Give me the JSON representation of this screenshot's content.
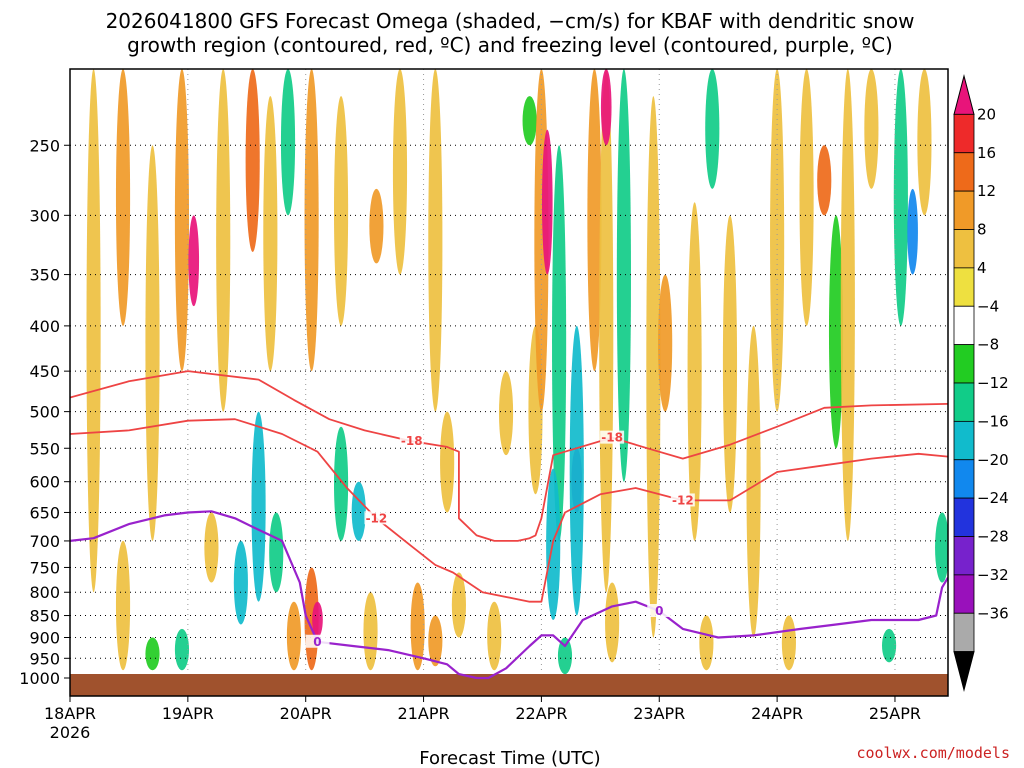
{
  "chart_data": {
    "type": "heatmap",
    "title_lines": [
      "2026041800 GFS Forecast Omega (shaded, −cm/s) for KBAF with dendritic snow",
      "growth region (contoured, red, ºC) and freezing level (contoured, purple, ºC)"
    ],
    "xlabel": "Forecast Time (UTC)",
    "ylabel": "",
    "x_ticks": [
      "18APR",
      "19APR",
      "20APR",
      "21APR",
      "22APR",
      "23APR",
      "24APR",
      "25APR"
    ],
    "x_year": "2026",
    "x_range_days": [
      0,
      7.45
    ],
    "y_ticks": [
      "250",
      "300",
      "350",
      "400",
      "450",
      "500",
      "550",
      "600",
      "650",
      "700",
      "750",
      "800",
      "850",
      "900",
      "950",
      "1000"
    ],
    "y_range_hpa": [
      1000,
      205
    ],
    "y_log": true,
    "grid": true,
    "colorbar": {
      "labels": [
        "20",
        "16",
        "12",
        "8",
        "4",
        "−4",
        "−8",
        "−12",
        "−16",
        "−20",
        "−24",
        "−28",
        "−32",
        "−36"
      ],
      "bands": [
        {
          "label": "> 20",
          "color": "#e8147a"
        },
        {
          "label": "16 to 20",
          "color": "#ee2a2a"
        },
        {
          "label": "12 to 16",
          "color": "#ee6a1a"
        },
        {
          "label": "8 to 12",
          "color": "#f09a28"
        },
        {
          "label": "4 to 8",
          "color": "#eec040"
        },
        {
          "label": "0 to 4",
          "color": "#eee040"
        },
        {
          "label": "-4 to 4",
          "color": "#ffffff"
        },
        {
          "label": "-8 to -4",
          "color": "#22cc22"
        },
        {
          "label": "-12 to -8",
          "color": "#11cc88"
        },
        {
          "label": "-16 to -12",
          "color": "#11bbcc"
        },
        {
          "label": "-20 to -16",
          "color": "#1188ee"
        },
        {
          "label": "-24 to -20",
          "color": "#2233dd"
        },
        {
          "label": "-28 to -24",
          "color": "#7722cc"
        },
        {
          "label": "-32 to -28",
          "color": "#9911bb"
        },
        {
          "label": "-36 to -32",
          "color": "#aaaaaa"
        },
        {
          "label": "< -36",
          "color": "#000000"
        }
      ]
    },
    "contours": [
      {
        "name": "-18",
        "color": "#ee4444",
        "label": "-18",
        "points": [
          [
            0,
            482
          ],
          [
            0.5,
            462
          ],
          [
            1.0,
            450
          ],
          [
            1.6,
            460
          ],
          [
            1.9,
            485
          ],
          [
            2.2,
            510
          ],
          [
            2.5,
            525
          ],
          [
            2.9,
            540
          ],
          [
            3.2,
            548
          ],
          [
            3.3,
            555
          ],
          [
            3.3,
            660
          ],
          [
            3.45,
            690
          ],
          [
            3.6,
            700
          ],
          [
            3.8,
            700
          ],
          [
            3.9,
            695
          ],
          [
            3.95,
            690
          ],
          [
            4.0,
            660
          ],
          [
            4.1,
            560
          ],
          [
            4.6,
            535
          ],
          [
            4.9,
            550
          ],
          [
            5.2,
            565
          ],
          [
            5.6,
            545
          ],
          [
            6.0,
            520
          ],
          [
            6.4,
            495
          ],
          [
            6.8,
            492
          ],
          [
            7.45,
            490
          ]
        ]
      },
      {
        "name": "-12",
        "color": "#ee4444",
        "label": "-12",
        "points": [
          [
            0,
            530
          ],
          [
            0.5,
            525
          ],
          [
            1.0,
            512
          ],
          [
            1.4,
            510
          ],
          [
            1.8,
            530
          ],
          [
            2.1,
            555
          ],
          [
            2.35,
            610
          ],
          [
            2.6,
            660
          ],
          [
            2.9,
            710
          ],
          [
            3.1,
            745
          ],
          [
            3.25,
            760
          ],
          [
            3.5,
            800
          ],
          [
            3.9,
            820
          ],
          [
            4.0,
            820
          ],
          [
            4.1,
            700
          ],
          [
            4.2,
            650
          ],
          [
            4.5,
            620
          ],
          [
            4.8,
            610
          ],
          [
            5.2,
            630
          ],
          [
            5.6,
            630
          ],
          [
            6.0,
            585
          ],
          [
            6.4,
            575
          ],
          [
            6.8,
            565
          ],
          [
            7.2,
            558
          ],
          [
            7.45,
            562
          ]
        ]
      },
      {
        "name": "0",
        "color": "#9922cc",
        "label": "0",
        "points": [
          [
            0,
            700
          ],
          [
            0.2,
            695
          ],
          [
            0.5,
            670
          ],
          [
            0.8,
            655
          ],
          [
            1.0,
            650
          ],
          [
            1.2,
            648
          ],
          [
            1.4,
            660
          ],
          [
            1.6,
            680
          ],
          [
            1.8,
            700
          ],
          [
            1.95,
            780
          ],
          [
            2.0,
            850
          ],
          [
            2.1,
            910
          ],
          [
            2.4,
            920
          ],
          [
            2.7,
            930
          ],
          [
            3.0,
            950
          ],
          [
            3.2,
            965
          ],
          [
            3.3,
            990
          ],
          [
            3.45,
            1000
          ],
          [
            3.55,
            1000
          ],
          [
            3.7,
            975
          ],
          [
            3.9,
            920
          ],
          [
            4.0,
            895
          ],
          [
            4.1,
            895
          ],
          [
            4.2,
            920
          ],
          [
            4.35,
            860
          ],
          [
            4.6,
            830
          ],
          [
            4.8,
            820
          ],
          [
            5.0,
            840
          ],
          [
            5.2,
            880
          ],
          [
            5.5,
            900
          ],
          [
            5.8,
            895
          ],
          [
            6.2,
            880
          ],
          [
            6.5,
            870
          ],
          [
            6.8,
            860
          ],
          [
            7.2,
            860
          ],
          [
            7.35,
            850
          ],
          [
            7.4,
            790
          ],
          [
            7.45,
            770
          ]
        ]
      }
    ],
    "shading_note": "omega field approximated with representative patches",
    "patches": [
      {
        "day": 0.2,
        "p1": 205,
        "p2": 800,
        "value": 6
      },
      {
        "day": 0.45,
        "p1": 205,
        "p2": 400,
        "value": 10
      },
      {
        "day": 0.7,
        "p1": 250,
        "p2": 700,
        "value": 6
      },
      {
        "day": 0.95,
        "p1": 205,
        "p2": 450,
        "value": 10
      },
      {
        "day": 1.05,
        "p1": 300,
        "p2": 380,
        "value": 22
      },
      {
        "day": 1.3,
        "p1": 205,
        "p2": 500,
        "value": 8
      },
      {
        "day": 1.55,
        "p1": 205,
        "p2": 330,
        "value": 14
      },
      {
        "day": 1.7,
        "p1": 220,
        "p2": 450,
        "value": 6
      },
      {
        "day": 1.85,
        "p1": 205,
        "p2": 300,
        "value": -10
      },
      {
        "day": 2.05,
        "p1": 205,
        "p2": 450,
        "value": 10
      },
      {
        "day": 2.3,
        "p1": 220,
        "p2": 400,
        "value": 6
      },
      {
        "day": 2.6,
        "p1": 280,
        "p2": 340,
        "value": 12
      },
      {
        "day": 2.8,
        "p1": 205,
        "p2": 350,
        "value": 6
      },
      {
        "day": 3.1,
        "p1": 205,
        "p2": 500,
        "value": 6
      },
      {
        "day": 0.95,
        "p1": 880,
        "p2": 980,
        "value": -10
      },
      {
        "day": 0.7,
        "p1": 900,
        "p2": 980,
        "value": -6
      },
      {
        "day": 1.2,
        "p1": 650,
        "p2": 780,
        "value": 6
      },
      {
        "day": 1.45,
        "p1": 700,
        "p2": 870,
        "value": -12
      },
      {
        "day": 1.6,
        "p1": 500,
        "p2": 820,
        "value": -14
      },
      {
        "day": 1.75,
        "p1": 650,
        "p2": 800,
        "value": -10
      },
      {
        "day": 1.9,
        "p1": 820,
        "p2": 980,
        "value": 10
      },
      {
        "day": 2.05,
        "p1": 750,
        "p2": 980,
        "value": 14
      },
      {
        "day": 2.1,
        "p1": 820,
        "p2": 900,
        "value": 22
      },
      {
        "day": 2.3,
        "p1": 520,
        "p2": 700,
        "value": -8
      },
      {
        "day": 2.45,
        "p1": 600,
        "p2": 700,
        "value": -12
      },
      {
        "day": 2.55,
        "p1": 800,
        "p2": 980,
        "value": 6
      },
      {
        "day": 2.95,
        "p1": 780,
        "p2": 980,
        "value": 10
      },
      {
        "day": 3.1,
        "p1": 850,
        "p2": 970,
        "value": 12
      },
      {
        "day": 3.3,
        "p1": 760,
        "p2": 900,
        "value": 6
      },
      {
        "day": 3.6,
        "p1": 820,
        "p2": 980,
        "value": 6
      },
      {
        "day": 3.2,
        "p1": 500,
        "p2": 650,
        "value": 6
      },
      {
        "day": 3.7,
        "p1": 450,
        "p2": 560,
        "value": 6
      },
      {
        "day": 3.9,
        "p1": 220,
        "p2": 250,
        "value": -6
      },
      {
        "day": 3.95,
        "p1": 400,
        "p2": 620,
        "value": 6
      },
      {
        "day": 4.0,
        "p1": 205,
        "p2": 500,
        "value": 10
      },
      {
        "day": 4.05,
        "p1": 240,
        "p2": 350,
        "value": 22
      },
      {
        "day": 4.15,
        "p1": 250,
        "p2": 700,
        "value": -8
      },
      {
        "day": 4.1,
        "p1": 580,
        "p2": 860,
        "value": -12
      },
      {
        "day": 4.3,
        "p1": 550,
        "p2": 650,
        "value": -26
      },
      {
        "day": 4.3,
        "p1": 400,
        "p2": 850,
        "value": -12
      },
      {
        "day": 4.45,
        "p1": 205,
        "p2": 450,
        "value": 10
      },
      {
        "day": 4.55,
        "p1": 205,
        "p2": 800,
        "value": 6
      },
      {
        "day": 4.55,
        "p1": 205,
        "p2": 250,
        "value": 22
      },
      {
        "day": 4.7,
        "p1": 205,
        "p2": 600,
        "value": -10
      },
      {
        "day": 4.95,
        "p1": 220,
        "p2": 900,
        "value": 6
      },
      {
        "day": 5.05,
        "p1": 350,
        "p2": 500,
        "value": 10
      },
      {
        "day": 5.3,
        "p1": 290,
        "p2": 700,
        "value": 6
      },
      {
        "day": 5.45,
        "p1": 205,
        "p2": 280,
        "value": -8
      },
      {
        "day": 5.6,
        "p1": 300,
        "p2": 650,
        "value": 8
      },
      {
        "day": 5.8,
        "p1": 400,
        "p2": 900,
        "value": 6
      },
      {
        "day": 6.0,
        "p1": 205,
        "p2": 500,
        "value": 6
      },
      {
        "day": 6.25,
        "p1": 205,
        "p2": 400,
        "value": 8
      },
      {
        "day": 6.4,
        "p1": 250,
        "p2": 300,
        "value": 14
      },
      {
        "day": 6.5,
        "p1": 300,
        "p2": 550,
        "value": -6
      },
      {
        "day": 6.6,
        "p1": 205,
        "p2": 700,
        "value": 6
      },
      {
        "day": 6.8,
        "p1": 205,
        "p2": 280,
        "value": 6
      },
      {
        "day": 7.05,
        "p1": 205,
        "p2": 400,
        "value": -10
      },
      {
        "day": 7.15,
        "p1": 280,
        "p2": 350,
        "value": -16
      },
      {
        "day": 7.25,
        "p1": 205,
        "p2": 300,
        "value": 6
      },
      {
        "day": 7.4,
        "p1": 650,
        "p2": 780,
        "value": -10
      },
      {
        "day": 6.1,
        "p1": 850,
        "p2": 980,
        "value": 6
      },
      {
        "day": 5.4,
        "p1": 850,
        "p2": 980,
        "value": 6
      },
      {
        "day": 6.95,
        "p1": 880,
        "p2": 960,
        "value": -8
      },
      {
        "day": 0.45,
        "p1": 700,
        "p2": 980,
        "value": 6
      },
      {
        "day": 4.6,
        "p1": 780,
        "p2": 960,
        "value": 6
      },
      {
        "day": 4.2,
        "p1": 900,
        "p2": 990,
        "value": -8
      }
    ]
  },
  "footer": {
    "credit": "coolwx.com/models"
  }
}
